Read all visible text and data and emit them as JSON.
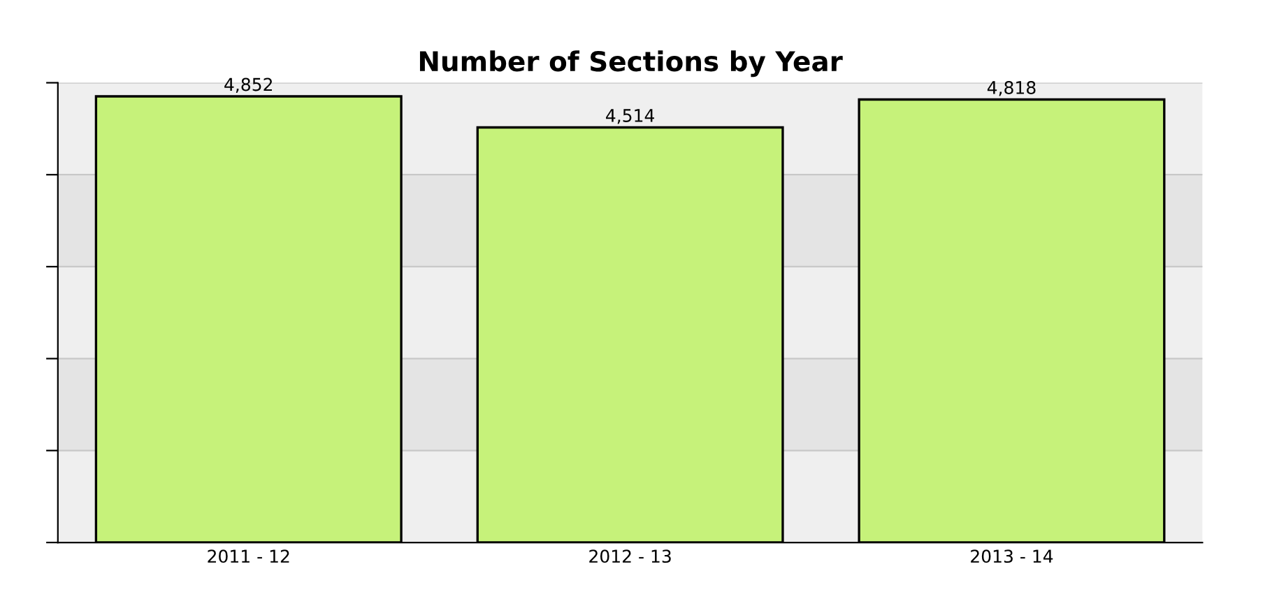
{
  "chart_data": {
    "type": "bar",
    "title": "Number of Sections by Year",
    "categories": [
      "2011 - 12",
      "2012 - 13",
      "2013 - 14"
    ],
    "values": [
      4852,
      4514,
      4818
    ],
    "color": "#c6f27a",
    "value_labels": [
      "4,852",
      "4,514",
      "4,818"
    ],
    "ylim": [
      0,
      5000
    ],
    "yticks": [
      {
        "value": 0,
        "label": null
      },
      {
        "value": 1000,
        "label": null
      },
      {
        "value": 2000,
        "label": null
      },
      {
        "value": 3000,
        "label": null
      },
      {
        "value": 4000,
        "label": null
      },
      {
        "value": 5000,
        "label": null
      }
    ],
    "tick_labels": "x",
    "grid": "y"
  }
}
